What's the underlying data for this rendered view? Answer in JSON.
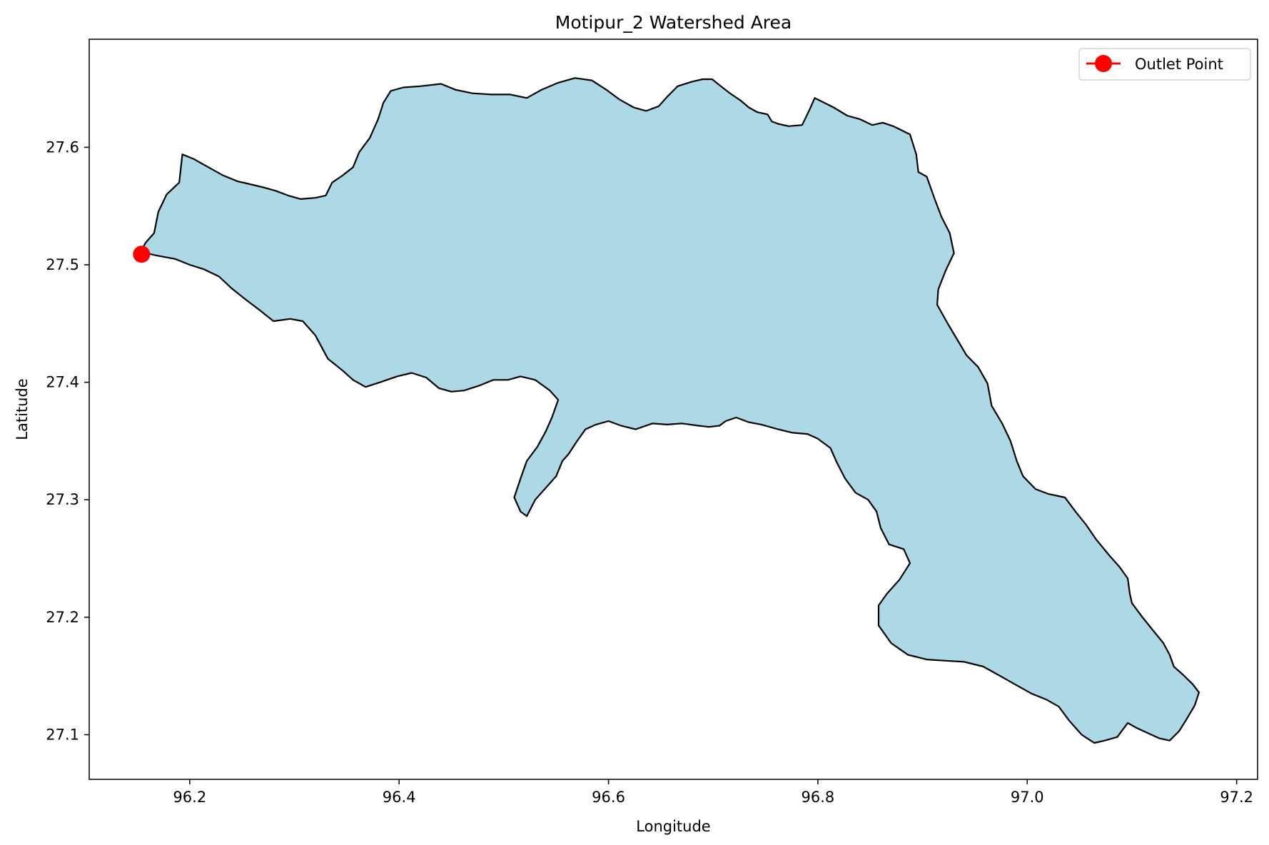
{
  "chart_data": {
    "type": "map",
    "title": "Motipur_2 Watershed Area",
    "xlabel": "Longitude",
    "ylabel": "Latitude",
    "xlim": [
      96.104,
      97.22
    ],
    "ylim": [
      27.062,
      27.692
    ],
    "xticks": [
      96.2,
      96.4,
      96.6,
      96.8,
      97.0,
      97.2
    ],
    "xtick_labels": [
      "96.2",
      "96.4",
      "96.6",
      "96.8",
      "97.0",
      "97.2"
    ],
    "yticks": [
      27.1,
      27.2,
      27.3,
      27.4,
      27.5,
      27.6
    ],
    "ytick_labels": [
      "27.1",
      "27.2",
      "27.3",
      "27.4",
      "27.5",
      "27.6"
    ],
    "grid": false,
    "legend": {
      "position": "top-right",
      "entries": [
        {
          "label": "Outlet Point",
          "color": "#ff0000",
          "marker": "circle-line"
        }
      ]
    },
    "watershed": {
      "fill": "#add8e6",
      "edge": "#000000",
      "boundary": [
        [
          96.153,
          27.511
        ],
        [
          96.158,
          27.519
        ],
        [
          96.166,
          27.527
        ],
        [
          96.17,
          27.545
        ],
        [
          96.178,
          27.56
        ],
        [
          96.19,
          27.57
        ],
        [
          96.193,
          27.594
        ],
        [
          96.204,
          27.59
        ],
        [
          96.218,
          27.583
        ],
        [
          96.232,
          27.576
        ],
        [
          96.246,
          27.571
        ],
        [
          96.256,
          27.569
        ],
        [
          96.27,
          27.566
        ],
        [
          96.282,
          27.563
        ],
        [
          96.294,
          27.559
        ],
        [
          96.306,
          27.556
        ],
        [
          96.32,
          27.557
        ],
        [
          96.33,
          27.559
        ],
        [
          96.336,
          27.57
        ],
        [
          96.346,
          27.576
        ],
        [
          96.356,
          27.583
        ],
        [
          96.362,
          27.596
        ],
        [
          96.372,
          27.608
        ],
        [
          96.38,
          27.624
        ],
        [
          96.385,
          27.638
        ],
        [
          96.392,
          27.648
        ],
        [
          96.404,
          27.651
        ],
        [
          96.42,
          27.652
        ],
        [
          96.44,
          27.654
        ],
        [
          96.454,
          27.649
        ],
        [
          96.47,
          27.646
        ],
        [
          96.488,
          27.645
        ],
        [
          96.506,
          27.645
        ],
        [
          96.522,
          27.642
        ],
        [
          96.536,
          27.649
        ],
        [
          96.552,
          27.655
        ],
        [
          96.568,
          27.659
        ],
        [
          96.584,
          27.657
        ],
        [
          96.598,
          27.649
        ],
        [
          96.61,
          27.641
        ],
        [
          96.624,
          27.634
        ],
        [
          96.636,
          27.631
        ],
        [
          96.648,
          27.635
        ],
        [
          96.656,
          27.643
        ],
        [
          96.666,
          27.652
        ],
        [
          96.68,
          27.656
        ],
        [
          96.69,
          27.658
        ],
        [
          96.699,
          27.658
        ],
        [
          96.706,
          27.653
        ],
        [
          96.716,
          27.646
        ],
        [
          96.726,
          27.64
        ],
        [
          96.734,
          27.634
        ],
        [
          96.742,
          27.63
        ],
        [
          96.752,
          27.628
        ],
        [
          96.756,
          27.622
        ],
        [
          96.762,
          27.62
        ],
        [
          96.772,
          27.618
        ],
        [
          96.785,
          27.619
        ],
        [
          96.792,
          27.632
        ],
        [
          96.797,
          27.642
        ],
        [
          96.806,
          27.638
        ],
        [
          96.815,
          27.634
        ],
        [
          96.828,
          27.627
        ],
        [
          96.84,
          27.624
        ],
        [
          96.852,
          27.619
        ],
        [
          96.862,
          27.621
        ],
        [
          96.872,
          27.618
        ],
        [
          96.888,
          27.611
        ],
        [
          96.894,
          27.594
        ],
        [
          96.896,
          27.579
        ],
        [
          96.904,
          27.575
        ],
        [
          96.912,
          27.555
        ],
        [
          96.918,
          27.541
        ],
        [
          96.926,
          27.527
        ],
        [
          96.93,
          27.51
        ],
        [
          96.922,
          27.495
        ],
        [
          96.915,
          27.479
        ],
        [
          96.914,
          27.466
        ],
        [
          96.924,
          27.45
        ],
        [
          96.934,
          27.435
        ],
        [
          96.942,
          27.423
        ],
        [
          96.953,
          27.413
        ],
        [
          96.962,
          27.399
        ],
        [
          96.966,
          27.38
        ],
        [
          96.976,
          27.365
        ],
        [
          96.984,
          27.35
        ],
        [
          96.99,
          27.333
        ],
        [
          96.996,
          27.32
        ],
        [
          97.008,
          27.309
        ],
        [
          97.02,
          27.305
        ],
        [
          97.036,
          27.302
        ],
        [
          97.046,
          27.29
        ],
        [
          97.056,
          27.279
        ],
        [
          97.066,
          27.266
        ],
        [
          97.078,
          27.253
        ],
        [
          97.088,
          27.243
        ],
        [
          97.096,
          27.233
        ],
        [
          97.098,
          27.22
        ],
        [
          97.1,
          27.212
        ],
        [
          97.11,
          27.2
        ],
        [
          97.12,
          27.189
        ],
        [
          97.13,
          27.178
        ],
        [
          97.136,
          27.168
        ],
        [
          97.14,
          27.158
        ],
        [
          97.15,
          27.15
        ],
        [
          97.158,
          27.143
        ],
        [
          97.164,
          27.136
        ],
        [
          97.16,
          27.125
        ],
        [
          97.152,
          27.113
        ],
        [
          97.145,
          27.103
        ],
        [
          97.136,
          27.095
        ],
        [
          97.126,
          27.097
        ],
        [
          97.116,
          27.101
        ],
        [
          97.104,
          27.106
        ],
        [
          97.096,
          27.11
        ],
        [
          97.086,
          27.098
        ],
        [
          97.074,
          27.095
        ],
        [
          97.064,
          27.093
        ],
        [
          97.052,
          27.1
        ],
        [
          97.04,
          27.112
        ],
        [
          97.03,
          27.124
        ],
        [
          97.018,
          27.13
        ],
        [
          97.004,
          27.135
        ],
        [
          96.99,
          27.142
        ],
        [
          96.974,
          27.15
        ],
        [
          96.958,
          27.158
        ],
        [
          96.94,
          27.162
        ],
        [
          96.922,
          27.163
        ],
        [
          96.904,
          27.164
        ],
        [
          96.886,
          27.168
        ],
        [
          96.87,
          27.178
        ],
        [
          96.858,
          27.193
        ],
        [
          96.858,
          27.21
        ],
        [
          96.866,
          27.22
        ],
        [
          96.878,
          27.232
        ],
        [
          96.888,
          27.246
        ],
        [
          96.882,
          27.258
        ],
        [
          96.868,
          27.262
        ],
        [
          96.86,
          27.276
        ],
        [
          96.856,
          27.29
        ],
        [
          96.848,
          27.3
        ],
        [
          96.836,
          27.306
        ],
        [
          96.826,
          27.318
        ],
        [
          96.818,
          27.332
        ],
        [
          96.812,
          27.344
        ],
        [
          96.8,
          27.352
        ],
        [
          96.79,
          27.356
        ],
        [
          96.776,
          27.357
        ],
        [
          96.762,
          27.36
        ],
        [
          96.746,
          27.364
        ],
        [
          96.734,
          27.366
        ],
        [
          96.722,
          27.37
        ],
        [
          96.712,
          27.367
        ],
        [
          96.706,
          27.363
        ],
        [
          96.696,
          27.362
        ],
        [
          96.686,
          27.363
        ],
        [
          96.67,
          27.365
        ],
        [
          96.656,
          27.364
        ],
        [
          96.642,
          27.365
        ],
        [
          96.626,
          27.36
        ],
        [
          96.612,
          27.363
        ],
        [
          96.6,
          27.367
        ],
        [
          96.588,
          27.364
        ],
        [
          96.578,
          27.36
        ],
        [
          96.57,
          27.35
        ],
        [
          96.562,
          27.339
        ],
        [
          96.556,
          27.333
        ],
        [
          96.55,
          27.32
        ],
        [
          96.54,
          27.31
        ],
        [
          96.53,
          27.3
        ],
        [
          96.522,
          27.286
        ],
        [
          96.516,
          27.29
        ],
        [
          96.51,
          27.302
        ],
        [
          96.516,
          27.318
        ],
        [
          96.522,
          27.333
        ],
        [
          96.532,
          27.345
        ],
        [
          96.54,
          27.358
        ],
        [
          96.546,
          27.37
        ],
        [
          96.552,
          27.385
        ],
        [
          96.544,
          27.393
        ],
        [
          96.53,
          27.402
        ],
        [
          96.516,
          27.405
        ],
        [
          96.504,
          27.402
        ],
        [
          96.49,
          27.402
        ],
        [
          96.476,
          27.397
        ],
        [
          96.462,
          27.393
        ],
        [
          96.45,
          27.392
        ],
        [
          96.438,
          27.395
        ],
        [
          96.426,
          27.404
        ],
        [
          96.412,
          27.408
        ],
        [
          96.398,
          27.405
        ],
        [
          96.382,
          27.4
        ],
        [
          96.368,
          27.396
        ],
        [
          96.356,
          27.402
        ],
        [
          96.346,
          27.41
        ],
        [
          96.332,
          27.42
        ],
        [
          96.32,
          27.44
        ],
        [
          96.308,
          27.452
        ],
        [
          96.296,
          27.454
        ],
        [
          96.28,
          27.452
        ],
        [
          96.266,
          27.462
        ],
        [
          96.254,
          27.47
        ],
        [
          96.24,
          27.48
        ],
        [
          96.228,
          27.49
        ],
        [
          96.214,
          27.496
        ],
        [
          96.2,
          27.5
        ],
        [
          96.186,
          27.505
        ],
        [
          96.168,
          27.508
        ],
        [
          96.153,
          27.511
        ]
      ]
    },
    "outlet_point": {
      "label": "Outlet Point",
      "lon": 96.154,
      "lat": 27.509,
      "color": "#ff0000"
    }
  }
}
